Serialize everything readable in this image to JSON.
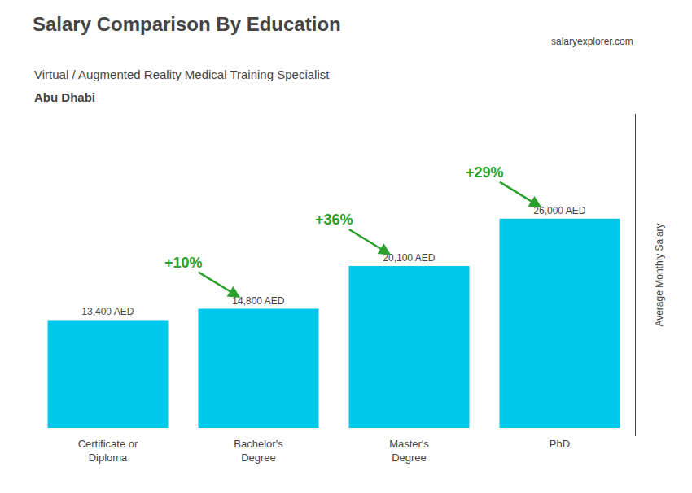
{
  "chart_data": {
    "type": "bar",
    "title": "Salary Comparison By Education",
    "subtitle": "Virtual / Augmented Reality Medical Training Specialist",
    "location": "Abu Dhabi",
    "watermark": "salaryexplorer.com",
    "ylabel": "Average Monthly Salary",
    "categories": [
      "Certificate or\nDiploma",
      "Bachelor's\nDegree",
      "Master's\nDegree",
      "PhD"
    ],
    "values": [
      13400,
      14800,
      20100,
      26000
    ],
    "value_labels": [
      "13,400 AED",
      "14,800 AED",
      "20,100 AED",
      "26,000 AED"
    ],
    "data_labels": true,
    "annotations": [
      "+10%",
      "+36%",
      "+29%"
    ],
    "color": "#00c8e8",
    "ylim": [
      -1000,
      39000
    ],
    "yticks": [],
    "grid": false,
    "tick_labels": "x"
  }
}
